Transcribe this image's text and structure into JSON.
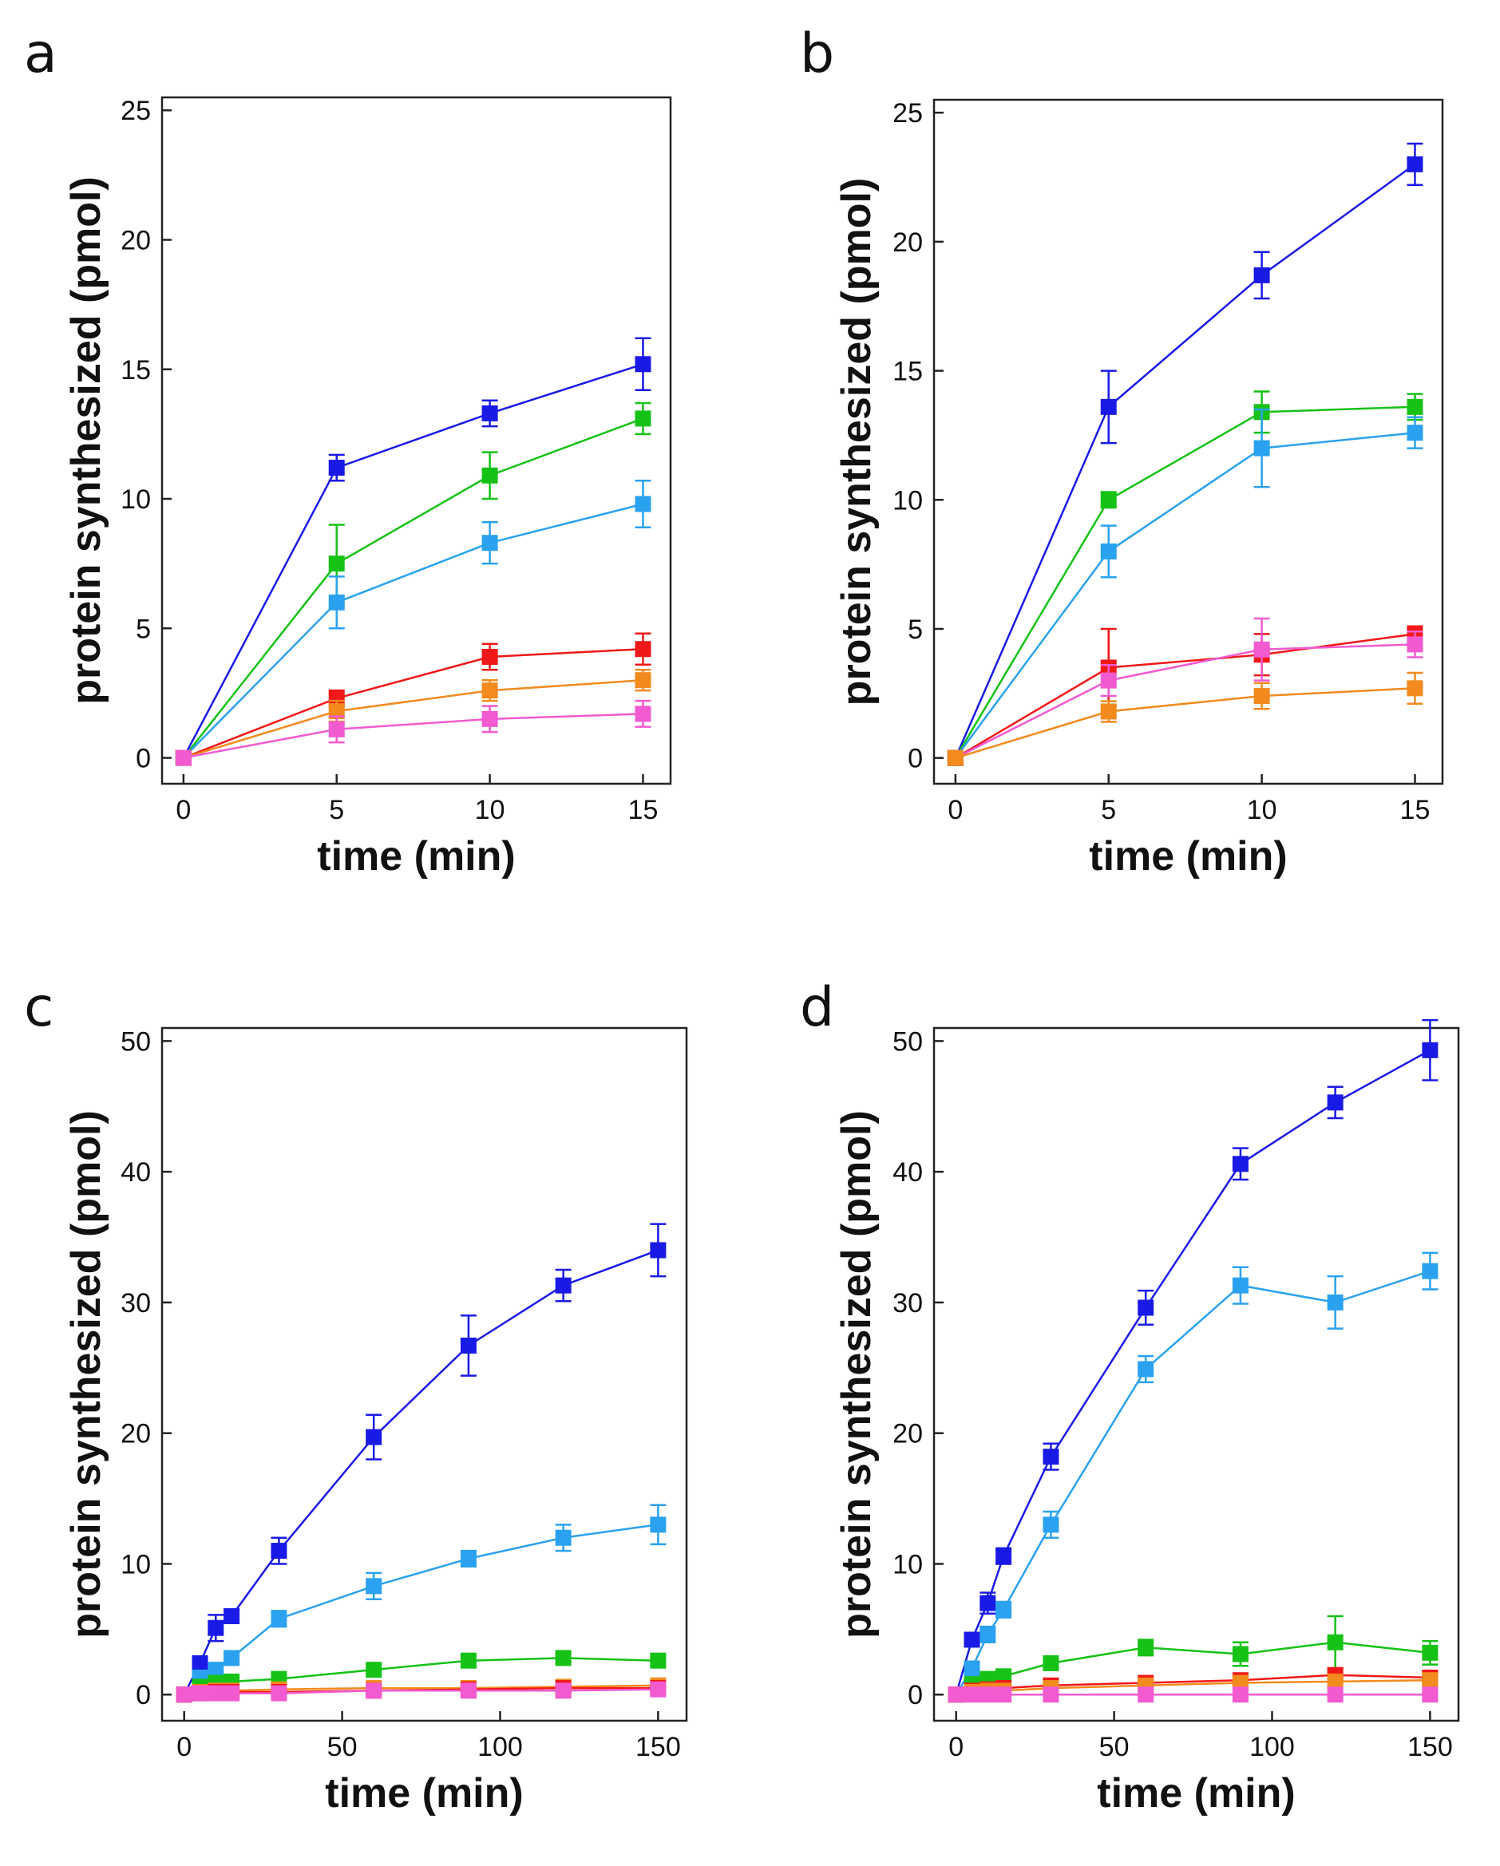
{
  "chart_data": [
    {
      "panel": "a",
      "type": "line",
      "xlabel": "time (min)",
      "ylabel": "protein synthesized (pmol)",
      "xlim": [
        -0.7,
        15.9
      ],
      "ylim": [
        -1,
        25.5
      ],
      "xticks": [
        0,
        5,
        10,
        15
      ],
      "yticks": [
        0,
        5,
        10,
        15,
        20,
        25
      ],
      "x": [
        0,
        5,
        10,
        15
      ],
      "series": [
        {
          "name": "dark blue",
          "color": "#1a1ae6",
          "values": [
            0,
            11.2,
            13.3,
            15.2
          ],
          "errors": [
            0,
            0.5,
            0.5,
            1.0
          ]
        },
        {
          "name": "green",
          "color": "#16c216",
          "values": [
            0,
            7.5,
            10.9,
            13.1
          ],
          "errors": [
            0,
            1.5,
            0.9,
            0.6
          ]
        },
        {
          "name": "light blue",
          "color": "#2aa2f0",
          "values": [
            0,
            6.0,
            8.3,
            9.8
          ],
          "errors": [
            0,
            1.0,
            0.8,
            0.9
          ]
        },
        {
          "name": "red",
          "color": "#f01818",
          "values": [
            0,
            2.3,
            3.9,
            4.2
          ],
          "errors": [
            0,
            0.3,
            0.5,
            0.6
          ]
        },
        {
          "name": "orange",
          "color": "#f28a1e",
          "values": [
            0,
            1.8,
            2.6,
            3.0
          ],
          "errors": [
            0,
            0.4,
            0.4,
            0.4
          ]
        },
        {
          "name": "magenta",
          "color": "#f25ad0",
          "values": [
            0,
            1.1,
            1.5,
            1.7
          ],
          "errors": [
            0,
            0.5,
            0.5,
            0.5
          ]
        }
      ]
    },
    {
      "panel": "b",
      "type": "line",
      "xlabel": "time (min)",
      "ylabel": "protein synthesized (pmol)",
      "xlim": [
        -0.7,
        15.9
      ],
      "ylim": [
        -1,
        25.5
      ],
      "xticks": [
        0,
        5,
        10,
        15
      ],
      "yticks": [
        0,
        5,
        10,
        15,
        20,
        25
      ],
      "x": [
        0,
        5,
        10,
        15
      ],
      "series": [
        {
          "name": "dark blue",
          "color": "#1a1ae6",
          "values": [
            0,
            13.6,
            18.7,
            23.0
          ],
          "errors": [
            0,
            1.4,
            0.9,
            0.8
          ]
        },
        {
          "name": "green",
          "color": "#16c216",
          "values": [
            0,
            10.0,
            13.4,
            13.6
          ],
          "errors": [
            0,
            0.3,
            0.8,
            0.5
          ]
        },
        {
          "name": "light blue",
          "color": "#2aa2f0",
          "values": [
            0,
            8.0,
            12.0,
            12.6
          ],
          "errors": [
            0,
            1.0,
            1.5,
            0.6
          ]
        },
        {
          "name": "red",
          "color": "#f01818",
          "values": [
            0,
            3.5,
            4.0,
            4.8
          ],
          "errors": [
            0,
            1.5,
            0.8,
            0.3
          ]
        },
        {
          "name": "magenta",
          "color": "#f25ad0",
          "values": [
            0,
            3.0,
            4.2,
            4.4
          ],
          "errors": [
            0,
            0.6,
            1.2,
            0.5
          ]
        },
        {
          "name": "orange",
          "color": "#f28a1e",
          "values": [
            0,
            1.8,
            2.4,
            2.7
          ],
          "errors": [
            0,
            0.4,
            0.5,
            0.6
          ]
        }
      ]
    },
    {
      "panel": "c",
      "type": "line",
      "xlabel": "time (min)",
      "ylabel": "protein synthesized (pmol)",
      "xlim": [
        -7,
        159
      ],
      "ylim": [
        -2,
        51
      ],
      "xticks": [
        0,
        50,
        100,
        150
      ],
      "yticks": [
        0,
        10,
        20,
        30,
        40,
        50
      ],
      "x": [
        0,
        5,
        10,
        15,
        30,
        60,
        90,
        120,
        150
      ],
      "series": [
        {
          "name": "dark blue",
          "color": "#1a1ae6",
          "values": [
            0,
            2.4,
            5.1,
            6.0,
            11.0,
            19.7,
            26.7,
            31.3,
            34.0
          ],
          "errors": [
            0,
            0.5,
            1.0,
            0.5,
            1.0,
            1.7,
            2.3,
            1.2,
            2.0
          ]
        },
        {
          "name": "light blue",
          "color": "#2aa2f0",
          "values": [
            0,
            1.3,
            1.9,
            2.8,
            5.8,
            8.3,
            10.4,
            12.0,
            13.0
          ],
          "errors": [
            0,
            0.4,
            0.5,
            0.5,
            0.6,
            1.0,
            0.6,
            1.0,
            1.5
          ]
        },
        {
          "name": "green",
          "color": "#16c216",
          "values": [
            0,
            0.6,
            0.9,
            1.0,
            1.2,
            1.9,
            2.6,
            2.8,
            2.6
          ],
          "errors": [
            0,
            0.3,
            0.3,
            0.3,
            0.3,
            0.4,
            0.4,
            0.4,
            0.4
          ]
        },
        {
          "name": "orange",
          "color": "#f28a1e",
          "values": [
            0,
            0.2,
            0.3,
            0.3,
            0.4,
            0.5,
            0.5,
            0.6,
            0.7
          ],
          "errors": [
            0,
            0.2,
            0.2,
            0.2,
            0.2,
            0.2,
            0.2,
            0.2,
            0.2
          ]
        },
        {
          "name": "red",
          "color": "#f01818",
          "values": [
            0,
            0.1,
            0.2,
            0.2,
            0.2,
            0.3,
            0.4,
            0.5,
            0.5
          ],
          "errors": [
            0,
            0.2,
            0.2,
            0.2,
            0.2,
            0.2,
            0.2,
            0.2,
            0.2
          ]
        },
        {
          "name": "magenta",
          "color": "#f25ad0",
          "values": [
            0,
            0.1,
            0.1,
            0.1,
            0.1,
            0.3,
            0.3,
            0.3,
            0.4
          ],
          "errors": [
            0,
            0.2,
            0.2,
            0.2,
            0.2,
            0.2,
            0.2,
            0.2,
            0.2
          ]
        }
      ]
    },
    {
      "panel": "d",
      "type": "line",
      "xlabel": "time (min)",
      "ylabel": "protein synthesized (pmol)",
      "xlim": [
        -7,
        159
      ],
      "ylim": [
        -2,
        51
      ],
      "xticks": [
        0,
        50,
        100,
        150
      ],
      "yticks": [
        0,
        10,
        20,
        30,
        40,
        50
      ],
      "x": [
        0,
        5,
        10,
        15,
        30,
        60,
        90,
        120,
        150
      ],
      "series": [
        {
          "name": "dark blue",
          "color": "#1a1ae6",
          "values": [
            0,
            4.2,
            7.0,
            10.6,
            18.2,
            29.6,
            40.6,
            45.3,
            49.3
          ],
          "errors": [
            0,
            0.5,
            0.8,
            0.6,
            1.0,
            1.3,
            1.2,
            1.2,
            2.3
          ]
        },
        {
          "name": "light blue",
          "color": "#2aa2f0",
          "values": [
            0,
            2.0,
            4.6,
            6.5,
            13.0,
            24.9,
            31.3,
            30.0,
            32.4
          ],
          "errors": [
            0,
            0.5,
            0.6,
            0.6,
            1.0,
            1.0,
            1.4,
            2.0,
            1.4
          ]
        },
        {
          "name": "green",
          "color": "#16c216",
          "values": [
            0,
            0.8,
            1.2,
            1.4,
            2.4,
            3.6,
            3.1,
            4.0,
            3.2
          ],
          "errors": [
            0,
            0.3,
            0.3,
            0.3,
            0.4,
            0.6,
            0.9,
            2.0,
            0.9
          ]
        },
        {
          "name": "red",
          "color": "#f01818",
          "values": [
            0,
            0.3,
            0.4,
            0.5,
            0.7,
            0.9,
            1.1,
            1.5,
            1.3
          ],
          "errors": [
            0,
            0.2,
            0.2,
            0.2,
            0.2,
            0.2,
            0.3,
            0.5,
            0.3
          ]
        },
        {
          "name": "orange",
          "color": "#f28a1e",
          "values": [
            0,
            0.2,
            0.3,
            0.3,
            0.5,
            0.7,
            0.9,
            1.0,
            1.1
          ],
          "errors": [
            0,
            0.2,
            0.2,
            0.2,
            0.2,
            0.2,
            0.2,
            0.2,
            0.2
          ]
        },
        {
          "name": "magenta",
          "color": "#f25ad0",
          "values": [
            0,
            0.0,
            0.0,
            0.0,
            0.0,
            0.0,
            0.0,
            0.0,
            0.0
          ],
          "errors": [
            0,
            0.1,
            0.1,
            0.1,
            0.1,
            0.1,
            0.1,
            0.1,
            0.1
          ]
        }
      ]
    }
  ]
}
